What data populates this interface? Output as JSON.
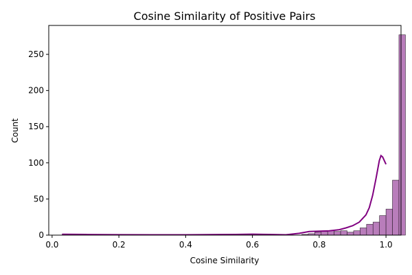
{
  "chart_data": {
    "type": "histogram",
    "title": "Cosine Similarity of Positive Pairs",
    "xlabel": "Cosine Similarity",
    "ylabel": "Count",
    "xlim": [
      -0.01,
      1.045
    ],
    "ylim": [
      0,
      290
    ],
    "xticks": [
      "0.0",
      "0.2",
      "0.4",
      "0.6",
      "0.8",
      "1.0"
    ],
    "xtick_values": [
      0.0,
      0.2,
      0.4,
      0.6,
      0.8,
      1.0
    ],
    "yticks": [
      "0",
      "50",
      "100",
      "150",
      "200",
      "250"
    ],
    "ytick_values": [
      0,
      50,
      100,
      150,
      200,
      250
    ],
    "grid": false,
    "bins": {
      "edges_start": 0.03,
      "bin_width": 0.0194,
      "counts": [
        1,
        0,
        0,
        0,
        0,
        0,
        0,
        0,
        0,
        0,
        0,
        0,
        0,
        0,
        0,
        0,
        0,
        0,
        0,
        0,
        0,
        0,
        0,
        0,
        0,
        1,
        0,
        1,
        0,
        1,
        1,
        0,
        0,
        0,
        0,
        0,
        0,
        1,
        2,
        4,
        5,
        6,
        5,
        6,
        4,
        6,
        10,
        15,
        18,
        27,
        36,
        76,
        277
      ]
    },
    "colors": {
      "bar_fill": "#b97dbb",
      "bar_edge": "#2b1a2b",
      "kde_line": "#800080"
    },
    "kde": {
      "x": [
        0.03,
        0.1,
        0.2,
        0.3,
        0.4,
        0.5,
        0.55,
        0.6,
        0.65,
        0.7,
        0.74,
        0.77,
        0.8,
        0.83,
        0.86,
        0.88,
        0.9,
        0.92,
        0.94,
        0.95,
        0.96,
        0.97,
        0.98,
        0.985,
        0.99,
        0.995,
        1.0
      ],
      "y": [
        1.2,
        0.9,
        0.6,
        0.5,
        0.5,
        0.8,
        1.0,
        1.3,
        0.9,
        0.5,
        2.5,
        5.0,
        5.5,
        6.0,
        7.5,
        10,
        13,
        18,
        28,
        38,
        55,
        78,
        103,
        110,
        108,
        103,
        98
      ]
    }
  }
}
